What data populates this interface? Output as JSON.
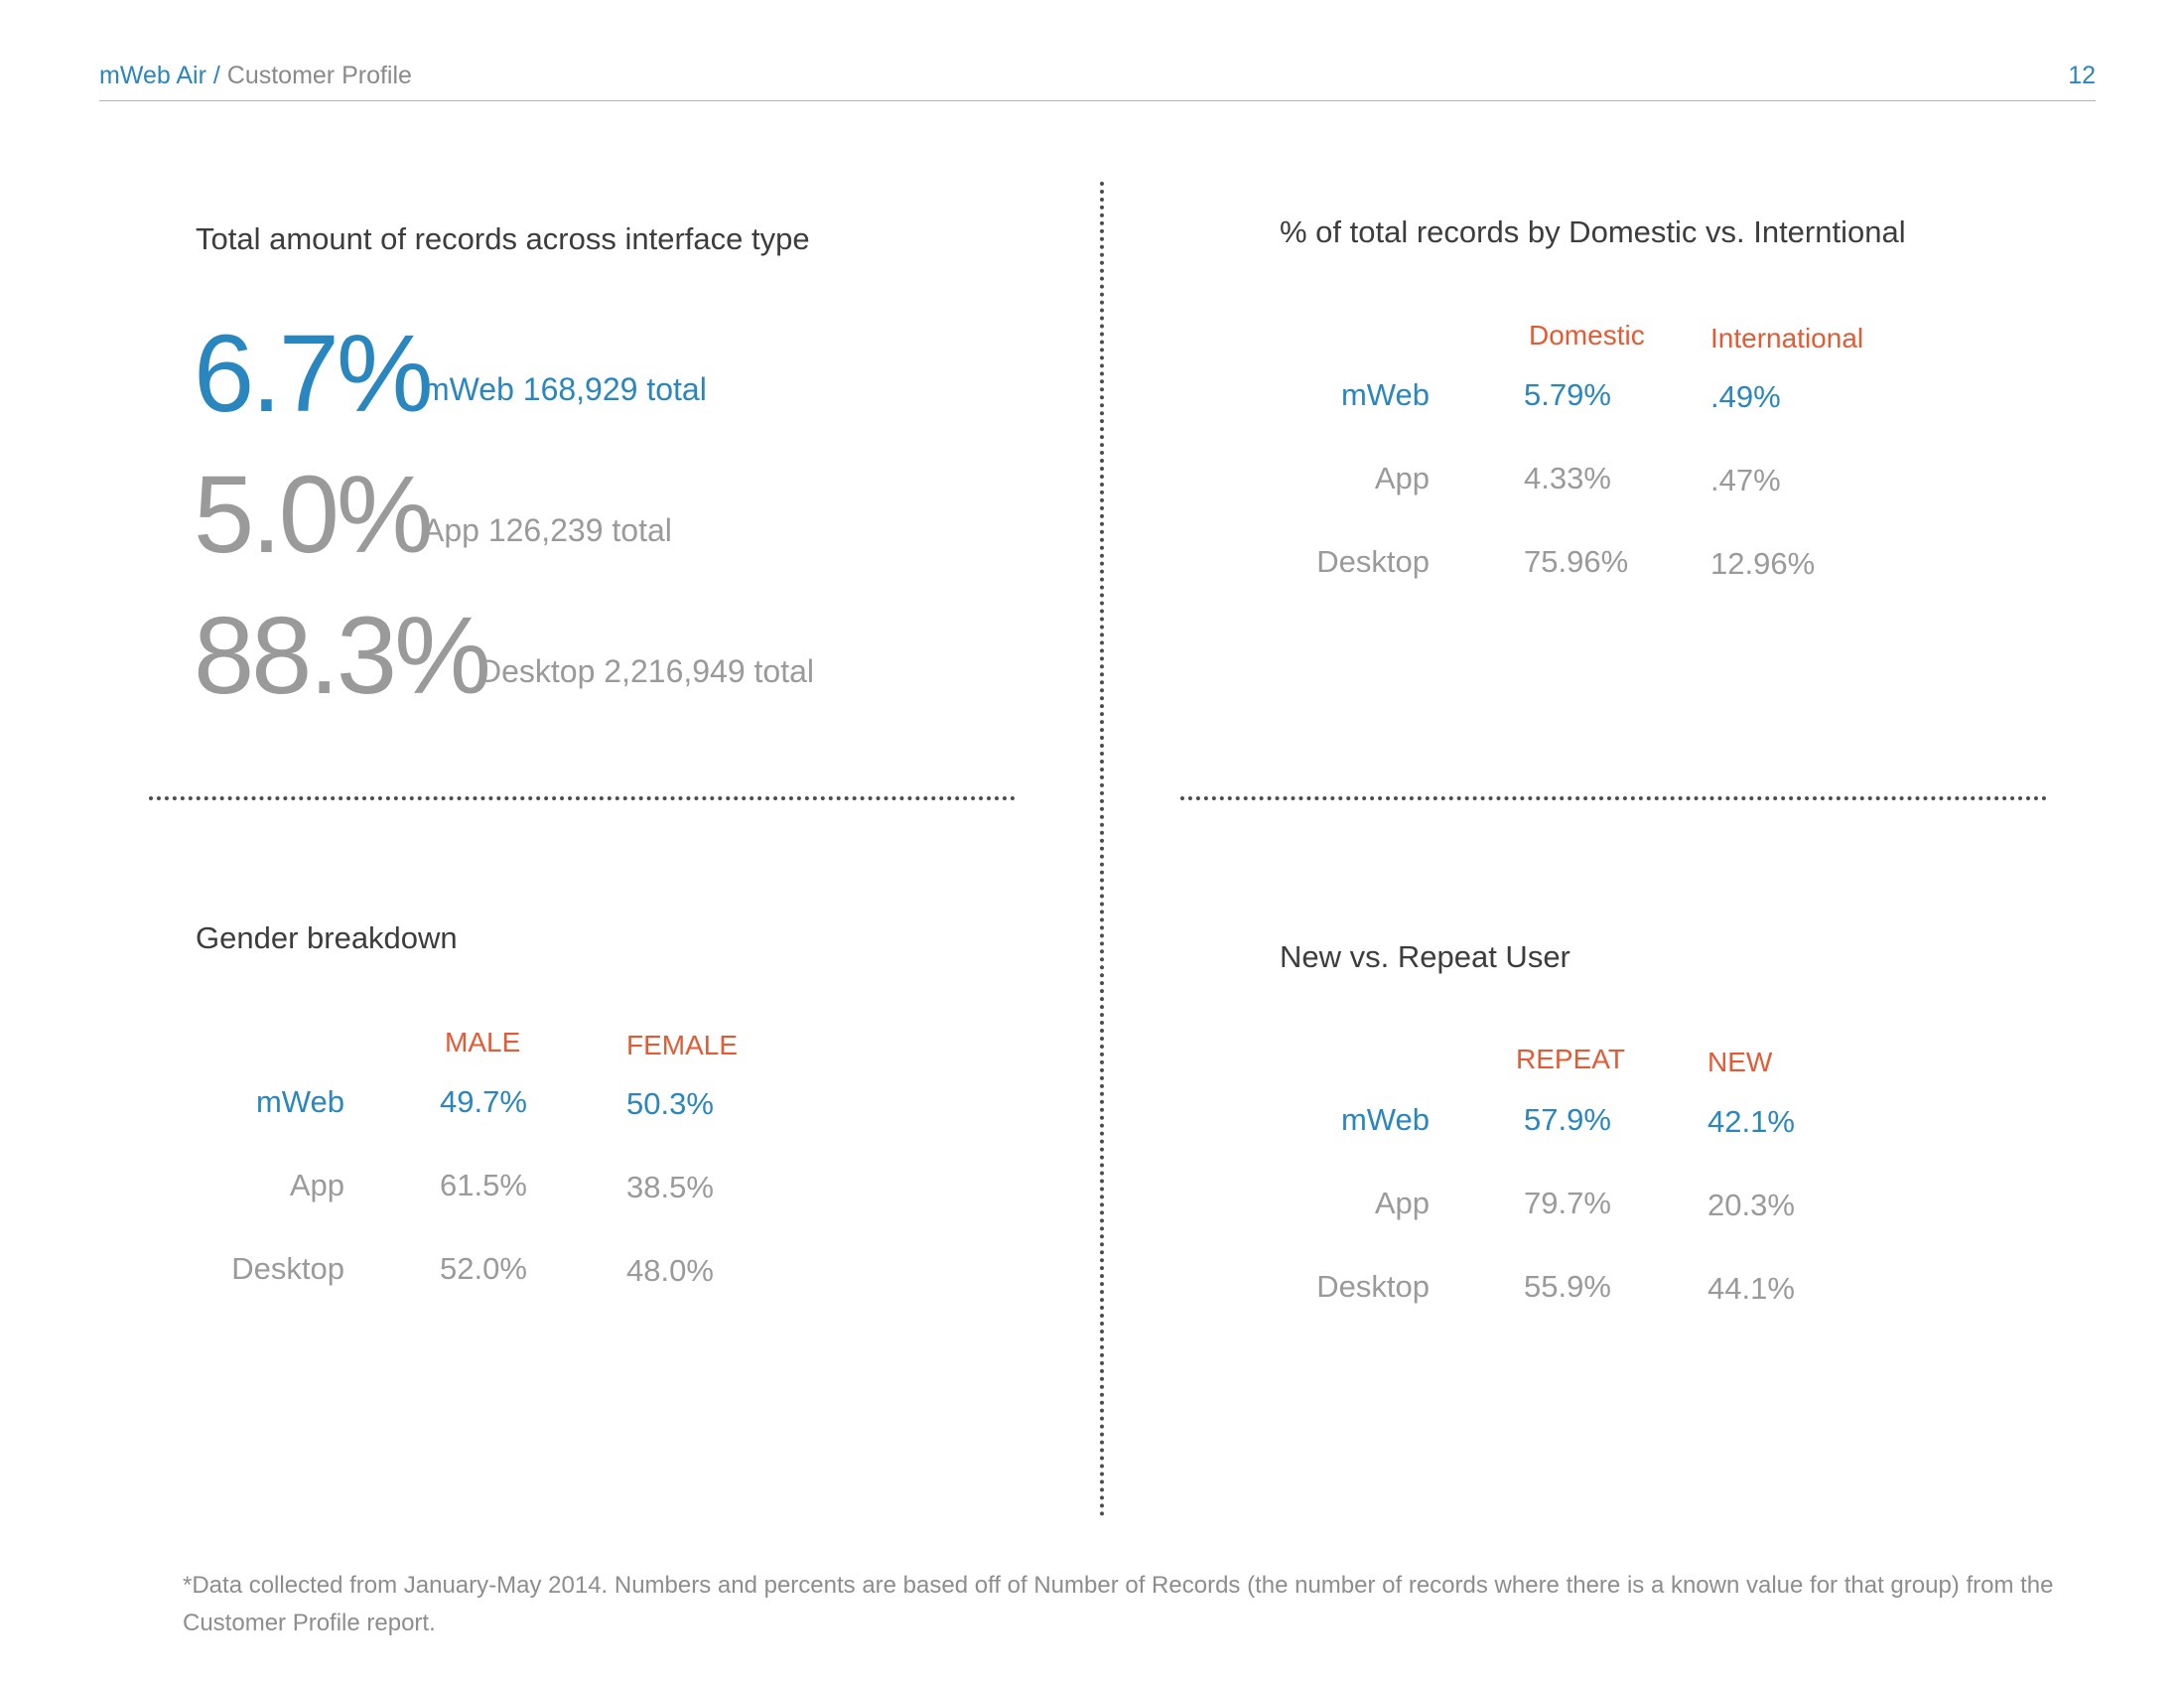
{
  "header": {
    "brand": "mWeb Air",
    "separator": "/",
    "section": "Customer Profile",
    "page_number": "12"
  },
  "interface_totals": {
    "title": "Total amount of records across interface type",
    "items": [
      {
        "percent": "6.7%",
        "label": "mWeb 168,929 total"
      },
      {
        "percent": "5.0%",
        "label": "App 126,239 total"
      },
      {
        "percent": "88.3%",
        "label": "Desktop 2,216,949 total"
      }
    ]
  },
  "domestic_international": {
    "title": "% of total records by Domestic vs. Interntional",
    "columns": [
      "Domestic",
      "International"
    ],
    "rows": [
      {
        "label": "mWeb",
        "values": [
          "5.79%",
          ".49%"
        ]
      },
      {
        "label": "App",
        "values": [
          "4.33%",
          ".47%"
        ]
      },
      {
        "label": "Desktop",
        "values": [
          "75.96%",
          "12.96%"
        ]
      }
    ]
  },
  "gender": {
    "title": "Gender breakdown",
    "columns": [
      "MALE",
      "FEMALE"
    ],
    "rows": [
      {
        "label": "mWeb",
        "values": [
          "49.7%",
          "50.3%"
        ]
      },
      {
        "label": "App",
        "values": [
          "61.5%",
          "38.5%"
        ]
      },
      {
        "label": "Desktop",
        "values": [
          "52.0%",
          "48.0%"
        ]
      }
    ]
  },
  "new_repeat": {
    "title": "New vs. Repeat User",
    "columns": [
      "REPEAT",
      "NEW"
    ],
    "rows": [
      {
        "label": "mWeb",
        "values": [
          "57.9%",
          "42.1%"
        ]
      },
      {
        "label": "App",
        "values": [
          "79.7%",
          "20.3%"
        ]
      },
      {
        "label": "Desktop",
        "values": [
          "55.9%",
          "44.1%"
        ]
      }
    ]
  },
  "footnote": "*Data collected from January-May 2014. Numbers and percents are based off of Number of Records (the number of records where there is a known value for that group) from the Customer Profile report.",
  "colors": {
    "accent_blue": "#2a86bf",
    "header_orange": "#e35b34",
    "muted_gray": "#9a9a9a"
  }
}
